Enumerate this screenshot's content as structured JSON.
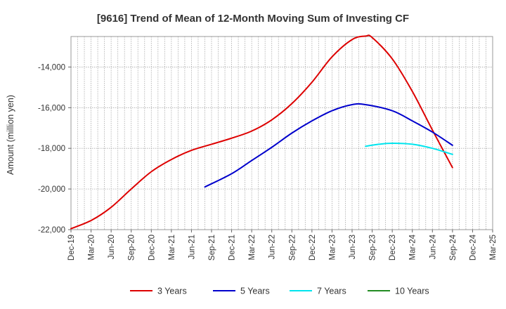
{
  "chart_data": {
    "type": "line",
    "title": "[9616]  Trend of Mean of 12-Month Moving Sum of Investing CF",
    "xlabel": "",
    "ylabel": "Amount (million yen)",
    "ylim": [
      -22000,
      -12500
    ],
    "yticks": [
      -22000,
      -20000,
      -18000,
      -16000,
      -14000
    ],
    "ytick_labels": [
      "-22,000",
      "-20,000",
      "-18,000",
      "-16,000",
      "-14,000"
    ],
    "x_range": [
      "Dec-19",
      "Mar-25"
    ],
    "xtick_labels": [
      "Dec-19",
      "Mar-20",
      "Jun-20",
      "Sep-20",
      "Dec-20",
      "Mar-21",
      "Jun-21",
      "Sep-21",
      "Dec-21",
      "Mar-22",
      "Jun-22",
      "Sep-22",
      "Dec-22",
      "Mar-23",
      "Jun-23",
      "Sep-23",
      "Dec-23",
      "Mar-24",
      "Jun-24",
      "Sep-24",
      "Dec-24",
      "Mar-25"
    ],
    "grid": true,
    "legend_position": "bottom",
    "series": [
      {
        "name": "3 Years",
        "color": "#dd0000",
        "points": [
          [
            "Dec-19",
            -21950
          ],
          [
            "Mar-20",
            -21550
          ],
          [
            "Jun-20",
            -20900
          ],
          [
            "Sep-20",
            -20000
          ],
          [
            "Dec-20",
            -19150
          ],
          [
            "Mar-21",
            -18550
          ],
          [
            "Jun-21",
            -18100
          ],
          [
            "Sep-21",
            -17800
          ],
          [
            "Dec-21",
            -17500
          ],
          [
            "Mar-22",
            -17150
          ],
          [
            "Jun-22",
            -16600
          ],
          [
            "Sep-22",
            -15800
          ],
          [
            "Dec-22",
            -14750
          ],
          [
            "Mar-23",
            -13500
          ],
          [
            "Jun-23",
            -12650
          ],
          [
            "Aug-23",
            -12480
          ],
          [
            "Sep-23",
            -12550
          ],
          [
            "Dec-23",
            -13600
          ],
          [
            "Mar-24",
            -15200
          ],
          [
            "Jun-24",
            -17100
          ],
          [
            "Sep-24",
            -18950
          ]
        ]
      },
      {
        "name": "5 Years",
        "color": "#0000cc",
        "points": [
          [
            "Aug-21",
            -19900
          ],
          [
            "Dec-21",
            -19250
          ],
          [
            "Mar-22",
            -18600
          ],
          [
            "Jun-22",
            -17950
          ],
          [
            "Sep-22",
            -17250
          ],
          [
            "Dec-22",
            -16650
          ],
          [
            "Mar-23",
            -16150
          ],
          [
            "Jun-23",
            -15850
          ],
          [
            "Aug-23",
            -15850
          ],
          [
            "Dec-23",
            -16150
          ],
          [
            "Mar-24",
            -16650
          ],
          [
            "Jun-24",
            -17200
          ],
          [
            "Sep-24",
            -17850
          ]
        ]
      },
      {
        "name": "7 Years",
        "color": "#00e5ee",
        "points": [
          [
            "Aug-23",
            -17900
          ],
          [
            "Oct-23",
            -17800
          ],
          [
            "Dec-23",
            -17750
          ],
          [
            "Mar-24",
            -17800
          ],
          [
            "Jun-24",
            -18000
          ],
          [
            "Sep-24",
            -18300
          ]
        ]
      },
      {
        "name": "10 Years",
        "color": "#228b22",
        "points": []
      }
    ]
  }
}
